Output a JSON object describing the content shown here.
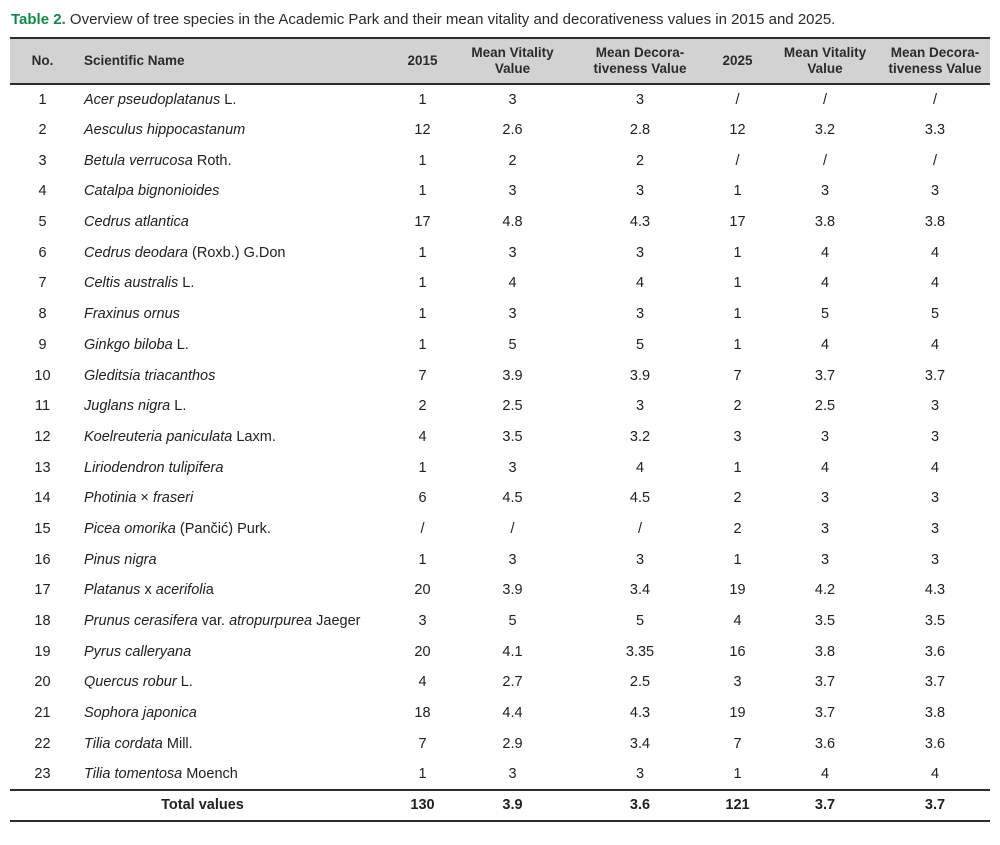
{
  "caption": {
    "label": "Table 2.",
    "text": "Overview of tree species in the Academic Park and their mean vitality and decorativeness values in 2015 and 2025."
  },
  "colors": {
    "caption_label_green": "#14884a",
    "header_background": "#d2d2d2",
    "rule_dark": "#2b2b2b",
    "text": "#212121"
  },
  "table": {
    "headers": [
      "No.",
      "Scientific Name",
      "2015",
      "Mean Vitality\nValue",
      "Mean Decora-\ntiveness Value",
      "2025",
      "Mean Vitality\nValue",
      "Mean Decora-\ntiveness Value"
    ],
    "rows": [
      {
        "no": "1",
        "name": [
          {
            "t": "Acer pseudoplatanus",
            "i": true
          },
          {
            "t": " L.",
            "i": false
          }
        ],
        "values": [
          "1",
          "3",
          "3",
          "/",
          "/",
          "/"
        ]
      },
      {
        "no": "2",
        "name": [
          {
            "t": "Aesculus hippocastanum",
            "i": true
          }
        ],
        "values": [
          "12",
          "2.6",
          "2.8",
          "12",
          "3.2",
          "3.3"
        ]
      },
      {
        "no": "3",
        "name": [
          {
            "t": "Betula verrucosa",
            "i": true
          },
          {
            "t": " Roth.",
            "i": false
          }
        ],
        "values": [
          "1",
          "2",
          "2",
          "/",
          "/",
          "/"
        ]
      },
      {
        "no": "4",
        "name": [
          {
            "t": "Catalpa bignonioides",
            "i": true
          }
        ],
        "values": [
          "1",
          "3",
          "3",
          "1",
          "3",
          "3"
        ]
      },
      {
        "no": "5",
        "name": [
          {
            "t": "Cedrus atlantica",
            "i": true
          }
        ],
        "values": [
          "17",
          "4.8",
          "4.3",
          "17",
          "3.8",
          "3.8"
        ]
      },
      {
        "no": "6",
        "name": [
          {
            "t": "Cedrus deodara",
            "i": true
          },
          {
            "t": " (Roxb.) G.Don",
            "i": false
          }
        ],
        "values": [
          "1",
          "3",
          "3",
          "1",
          "4",
          "4"
        ]
      },
      {
        "no": "7",
        "name": [
          {
            "t": "Celtis australis",
            "i": true
          },
          {
            "t": " L.",
            "i": false
          }
        ],
        "values": [
          "1",
          "4",
          "4",
          "1",
          "4",
          "4"
        ]
      },
      {
        "no": "8",
        "name": [
          {
            "t": "Fraxinus ornus",
            "i": true
          }
        ],
        "values": [
          "1",
          "3",
          "3",
          "1",
          "5",
          "5"
        ]
      },
      {
        "no": "9",
        "name": [
          {
            "t": "Ginkgo biloba",
            "i": true
          },
          {
            "t": " L.",
            "i": false
          }
        ],
        "values": [
          "1",
          "5",
          "5",
          "1",
          "4",
          "4"
        ]
      },
      {
        "no": "10",
        "name": [
          {
            "t": "Gleditsia triacanthos",
            "i": true
          }
        ],
        "values": [
          "7",
          "3.9",
          "3.9",
          "7",
          "3.7",
          "3.7"
        ]
      },
      {
        "no": "11",
        "name": [
          {
            "t": "Juglans nigra",
            "i": true
          },
          {
            "t": " L.",
            "i": false
          }
        ],
        "values": [
          "2",
          "2.5",
          "3",
          "2",
          "2.5",
          "3"
        ]
      },
      {
        "no": "12",
        "name": [
          {
            "t": "Koelreuteria paniculata",
            "i": true
          },
          {
            "t": " Laxm.",
            "i": false
          }
        ],
        "values": [
          "4",
          "3.5",
          "3.2",
          "3",
          "3",
          "3"
        ]
      },
      {
        "no": "13",
        "name": [
          {
            "t": "Liriodendron tulipifera",
            "i": true
          }
        ],
        "values": [
          "1",
          "3",
          "4",
          "1",
          "4",
          "4"
        ]
      },
      {
        "no": "14",
        "name": [
          {
            "t": "Photinia",
            "i": true
          },
          {
            "t": " × ",
            "i": false
          },
          {
            "t": "fraseri",
            "i": true
          }
        ],
        "values": [
          "6",
          "4.5",
          "4.5",
          "2",
          "3",
          "3"
        ]
      },
      {
        "no": "15",
        "name": [
          {
            "t": "Picea omorika",
            "i": true
          },
          {
            "t": " (Pančić) Purk.",
            "i": false
          }
        ],
        "values": [
          "/",
          "/",
          "/",
          "2",
          "3",
          "3"
        ]
      },
      {
        "no": "16",
        "name": [
          {
            "t": "Pinus nigra",
            "i": true
          }
        ],
        "values": [
          "1",
          "3",
          "3",
          "1",
          "3",
          "3"
        ]
      },
      {
        "no": "17",
        "name": [
          {
            "t": "Platanus",
            "i": true
          },
          {
            "t": " x ",
            "i": false
          },
          {
            "t": "acerifoli",
            "i": true
          },
          {
            "t": "a",
            "i": false
          }
        ],
        "values": [
          "20",
          "3.9",
          "3.4",
          "19",
          "4.2",
          "4.3"
        ]
      },
      {
        "no": "18",
        "name": [
          {
            "t": "Prunus cerasifera",
            "i": true
          },
          {
            "t": " var. ",
            "i": false
          },
          {
            "t": "atropurpurea",
            "i": true
          },
          {
            "t": " Jaeger",
            "i": false
          }
        ],
        "values": [
          "3",
          "5",
          "5",
          "4",
          "3.5",
          "3.5"
        ]
      },
      {
        "no": "19",
        "name": [
          {
            "t": "Pyrus calleryana",
            "i": true
          }
        ],
        "values": [
          "20",
          "4.1",
          "3.35",
          "16",
          "3.8",
          "3.6"
        ]
      },
      {
        "no": "20",
        "name": [
          {
            "t": "Quercus robur",
            "i": true
          },
          {
            "t": " L.",
            "i": false
          }
        ],
        "values": [
          "4",
          "2.7",
          "2.5",
          "3",
          "3.7",
          "3.7"
        ]
      },
      {
        "no": "21",
        "name": [
          {
            "t": "Sophora japonica",
            "i": true
          }
        ],
        "values": [
          "18",
          "4.4",
          "4.3",
          "19",
          "3.7",
          "3.8"
        ]
      },
      {
        "no": "22",
        "name": [
          {
            "t": "Tilia cordata",
            "i": true
          },
          {
            "t": " Mill.",
            "i": false
          }
        ],
        "values": [
          "7",
          "2.9",
          "3.4",
          "7",
          "3.6",
          "3.6"
        ]
      },
      {
        "no": "23",
        "name": [
          {
            "t": "Tilia tomentosa",
            "i": true
          },
          {
            "t": " Moench",
            "i": false
          }
        ],
        "values": [
          "1",
          "3",
          "3",
          "1",
          "4",
          "4"
        ]
      }
    ],
    "total": {
      "label": "Total values",
      "values": [
        "130",
        "3.9",
        "3.6",
        "121",
        "3.7",
        "3.7"
      ]
    }
  }
}
